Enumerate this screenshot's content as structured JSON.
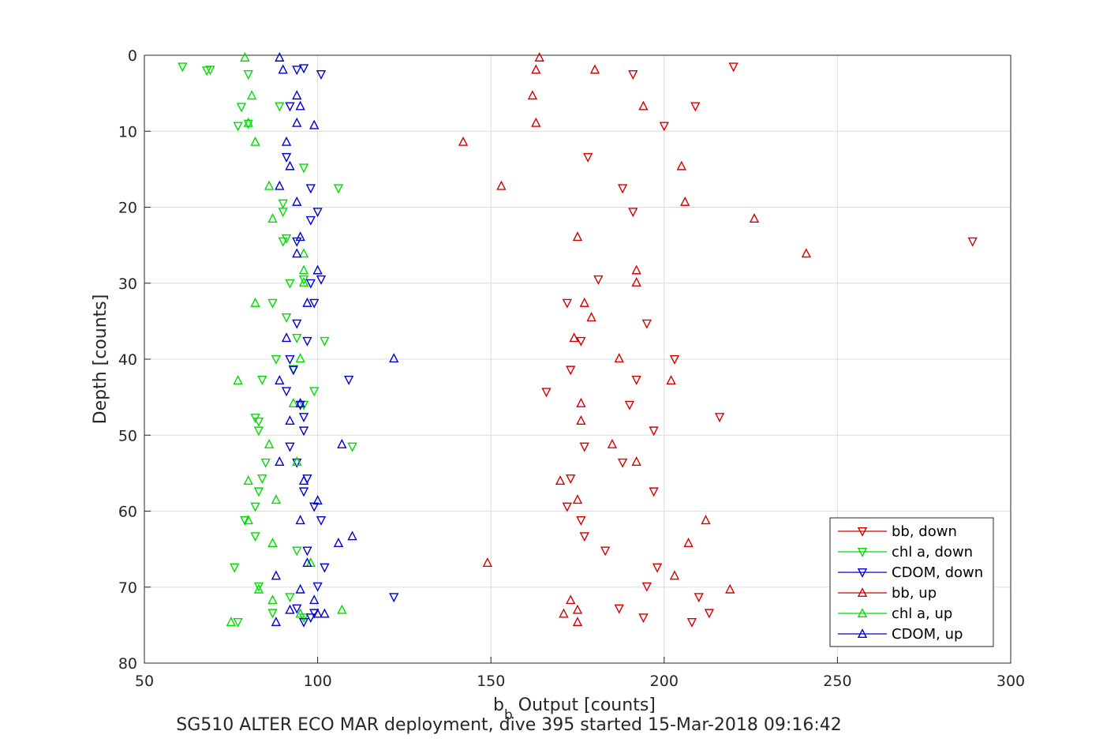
{
  "chart_data": {
    "type": "scatter",
    "xlabel_main": "b",
    "xlabel_sub": "b",
    "xlabel_rest": " Output [counts]",
    "ylabel": "Depth [counts]",
    "caption": "SG510 ALTER ECO MAR deployment, dive 395 started 15-Mar-2018 09:16:42",
    "xlim": [
      50,
      300
    ],
    "ylim": [
      0,
      80
    ],
    "y_reversed": true,
    "grid": true,
    "legend_position": "bottom-right",
    "x_ticks": [
      "50",
      "100",
      "150",
      "200",
      "250",
      "300"
    ],
    "y_ticks": [
      "0",
      "10",
      "20",
      "30",
      "40",
      "50",
      "60",
      "70",
      "80"
    ],
    "series": [
      {
        "name": "bb, down",
        "marker": "triangle-down",
        "color": "#d40000",
        "points": [
          [
            220,
            1.5
          ],
          [
            191,
            2.5
          ],
          [
            209,
            6.7
          ],
          [
            200,
            9.3
          ],
          [
            178,
            13.4
          ],
          [
            188,
            17.5
          ],
          [
            191,
            20.6
          ],
          [
            289,
            24.5
          ],
          [
            181,
            29.5
          ],
          [
            172,
            32.6
          ],
          [
            195,
            35.3
          ],
          [
            176,
            37.6
          ],
          [
            203,
            40
          ],
          [
            173,
            41.4
          ],
          [
            192,
            42.7
          ],
          [
            166,
            44.3
          ],
          [
            190,
            46
          ],
          [
            216,
            47.6
          ],
          [
            197,
            49.4
          ],
          [
            177,
            51.5
          ],
          [
            188,
            53.6
          ],
          [
            173,
            55.7
          ],
          [
            197,
            57.4
          ],
          [
            172,
            59.4
          ],
          [
            176,
            61.2
          ],
          [
            177,
            63.3
          ],
          [
            183,
            65.2
          ],
          [
            198,
            67.4
          ],
          [
            195,
            69.9
          ],
          [
            210,
            71.3
          ],
          [
            187,
            72.8
          ],
          [
            213,
            73.4
          ],
          [
            194,
            74
          ],
          [
            208,
            74.6
          ]
        ]
      },
      {
        "name": "chl a, down",
        "marker": "triangle-down",
        "color": "#00dc00",
        "points": [
          [
            61,
            1.5
          ],
          [
            69,
            1.9
          ],
          [
            68,
            2
          ],
          [
            80,
            2.5
          ],
          [
            89,
            6.7
          ],
          [
            78,
            6.8
          ],
          [
            77,
            9.3
          ],
          [
            80,
            9
          ],
          [
            96,
            14.8
          ],
          [
            106,
            17.5
          ],
          [
            90,
            19.5
          ],
          [
            90,
            20.6
          ],
          [
            91,
            24.1
          ],
          [
            90,
            24.5
          ],
          [
            96,
            29.5
          ],
          [
            92,
            30
          ],
          [
            87,
            32.6
          ],
          [
            91,
            34.5
          ],
          [
            94,
            37.2
          ],
          [
            102,
            37.6
          ],
          [
            88,
            40
          ],
          [
            93,
            41.3
          ],
          [
            84,
            42.7
          ],
          [
            99,
            44.2
          ],
          [
            96,
            46
          ],
          [
            83,
            48.2
          ],
          [
            82,
            47.7
          ],
          [
            83,
            49.4
          ],
          [
            110,
            51.5
          ],
          [
            85,
            53.6
          ],
          [
            84,
            55.7
          ],
          [
            83,
            57.4
          ],
          [
            82,
            59.4
          ],
          [
            79,
            61.2
          ],
          [
            82,
            63.3
          ],
          [
            94,
            65.2
          ],
          [
            76,
            67.4
          ],
          [
            83,
            69.9
          ],
          [
            92,
            71.3
          ],
          [
            87,
            73.4
          ],
          [
            96,
            74
          ],
          [
            77,
            74.6
          ]
        ]
      },
      {
        "name": "CDOM, down",
        "marker": "triangle-down",
        "color": "#0000d2",
        "points": [
          [
            94,
            1.9
          ],
          [
            96,
            1.7
          ],
          [
            101,
            2.5
          ],
          [
            92,
            6.7
          ],
          [
            91,
            13.4
          ],
          [
            98,
            17.5
          ],
          [
            100,
            20.6
          ],
          [
            98,
            21.7
          ],
          [
            94,
            24.5
          ],
          [
            101,
            29.5
          ],
          [
            98,
            30
          ],
          [
            99,
            32.6
          ],
          [
            94,
            35.3
          ],
          [
            97,
            37.6
          ],
          [
            92,
            40
          ],
          [
            93,
            41.4
          ],
          [
            109,
            42.7
          ],
          [
            91,
            44.2
          ],
          [
            95,
            46
          ],
          [
            96,
            47.6
          ],
          [
            96,
            49.4
          ],
          [
            92,
            51.5
          ],
          [
            94,
            53.6
          ],
          [
            97,
            55.7
          ],
          [
            96,
            57.4
          ],
          [
            99,
            59.4
          ],
          [
            101,
            61.2
          ],
          [
            97,
            65.2
          ],
          [
            102,
            67.4
          ],
          [
            100,
            69.9
          ],
          [
            122,
            71.3
          ],
          [
            94,
            72.8
          ],
          [
            99,
            73.4
          ],
          [
            98,
            74
          ],
          [
            96,
            74.6
          ]
        ]
      },
      {
        "name": "bb, up",
        "marker": "triangle-up",
        "color": "#d40000",
        "points": [
          [
            164,
            0.3
          ],
          [
            180,
            1.9
          ],
          [
            163,
            1.9
          ],
          [
            162,
            5.3
          ],
          [
            194,
            6.7
          ],
          [
            163,
            8.9
          ],
          [
            142,
            11.4
          ],
          [
            205,
            14.6
          ],
          [
            153,
            17.2
          ],
          [
            206,
            19.3
          ],
          [
            226,
            21.5
          ],
          [
            175,
            23.9
          ],
          [
            241,
            26.1
          ],
          [
            192,
            28.3
          ],
          [
            192,
            29.9
          ],
          [
            177,
            32.6
          ],
          [
            179,
            34.5
          ],
          [
            174,
            37.2
          ],
          [
            187,
            39.9
          ],
          [
            202,
            42.8
          ],
          [
            176,
            45.8
          ],
          [
            176,
            48.1
          ],
          [
            185,
            51.2
          ],
          [
            192,
            53.5
          ],
          [
            170,
            56
          ],
          [
            175,
            58.5
          ],
          [
            212,
            61.2
          ],
          [
            207,
            64.2
          ],
          [
            149,
            66.8
          ],
          [
            203,
            68.5
          ],
          [
            219,
            70.3
          ],
          [
            173,
            71.7
          ],
          [
            175,
            73
          ],
          [
            171,
            73.5
          ],
          [
            175,
            74.6
          ]
        ]
      },
      {
        "name": "chl a, up",
        "marker": "triangle-up",
        "color": "#00dc00",
        "points": [
          [
            79,
            0.3
          ],
          [
            81,
            5.3
          ],
          [
            80,
            8.9
          ],
          [
            82,
            11.4
          ],
          [
            86,
            17.2
          ],
          [
            87,
            21.5
          ],
          [
            96,
            26.1
          ],
          [
            96,
            28.3
          ],
          [
            96,
            29.9
          ],
          [
            82,
            32.6
          ],
          [
            95,
            39.9
          ],
          [
            77,
            42.8
          ],
          [
            93,
            45.8
          ],
          [
            86,
            51.2
          ],
          [
            94,
            53.5
          ],
          [
            80,
            56
          ],
          [
            88,
            58.5
          ],
          [
            80,
            61.2
          ],
          [
            87,
            64.2
          ],
          [
            98,
            66.8
          ],
          [
            83,
            70.3
          ],
          [
            87,
            71.7
          ],
          [
            107,
            73
          ],
          [
            95,
            73.5
          ],
          [
            75,
            74.6
          ]
        ]
      },
      {
        "name": "CDOM, up",
        "marker": "triangle-up",
        "color": "#0000d2",
        "points": [
          [
            89,
            0.3
          ],
          [
            90,
            1.9
          ],
          [
            94,
            5.3
          ],
          [
            95,
            6.7
          ],
          [
            94,
            8.9
          ],
          [
            99,
            9.2
          ],
          [
            91,
            11.4
          ],
          [
            92,
            14.6
          ],
          [
            89,
            17.2
          ],
          [
            94,
            19.3
          ],
          [
            95,
            23.9
          ],
          [
            94,
            26.1
          ],
          [
            100,
            28.3
          ],
          [
            97,
            32.6
          ],
          [
            91,
            37.2
          ],
          [
            122,
            39.9
          ],
          [
            89,
            42.8
          ],
          [
            95,
            45.8
          ],
          [
            92,
            48.1
          ],
          [
            107,
            51.2
          ],
          [
            89,
            53.5
          ],
          [
            96,
            56
          ],
          [
            100,
            58.6
          ],
          [
            95,
            61.2
          ],
          [
            110,
            63.3
          ],
          [
            106,
            64.2
          ],
          [
            97,
            66.8
          ],
          [
            88,
            68.5
          ],
          [
            95,
            70.3
          ],
          [
            99,
            71.7
          ],
          [
            92,
            73
          ],
          [
            102,
            73.5
          ],
          [
            100,
            73.5
          ],
          [
            88,
            74.6
          ]
        ]
      }
    ]
  }
}
